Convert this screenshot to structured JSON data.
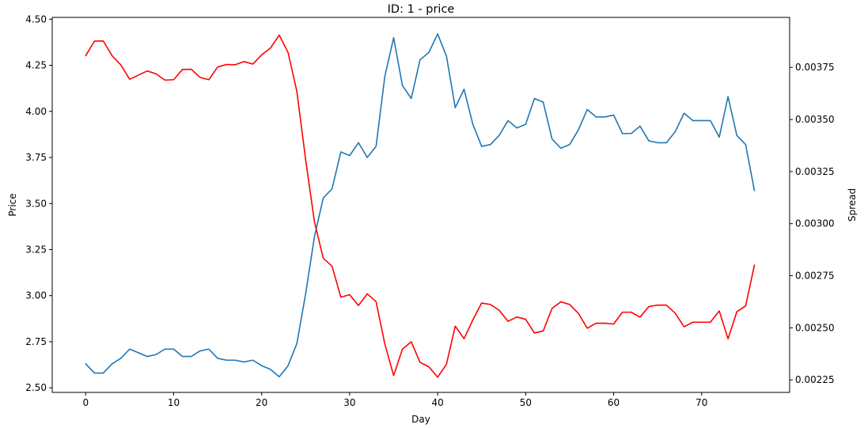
{
  "chart_data": {
    "type": "line",
    "title": "ID: 1 - price",
    "xlabel": "Day",
    "ylabel_left": "Price",
    "ylabel_right": "Spread",
    "xlim": [
      -3.8,
      80
    ],
    "ylim_left": [
      2.475,
      4.51
    ],
    "ylim_right": [
      0.00219,
      0.00399
    ],
    "x_ticks": [
      0,
      10,
      20,
      30,
      40,
      50,
      60,
      70
    ],
    "x_tick_labels": [
      "0",
      "10",
      "20",
      "30",
      "40",
      "50",
      "60",
      "70"
    ],
    "y_left_ticks": [
      2.5,
      2.75,
      3.0,
      3.25,
      3.5,
      3.75,
      4.0,
      4.25,
      4.5
    ],
    "y_left_tick_labels": [
      "2.50",
      "2.75",
      "3.00",
      "3.25",
      "3.50",
      "3.75",
      "4.00",
      "4.25",
      "4.50"
    ],
    "y_right_ticks": [
      0.00225,
      0.0025,
      0.00275,
      0.003,
      0.00325,
      0.0035,
      0.00375
    ],
    "y_right_tick_labels": [
      "0.00225",
      "0.00250",
      "0.00275",
      "0.00300",
      "0.00325",
      "0.00350",
      "0.00375"
    ],
    "grid": false,
    "series": [
      {
        "axis": "left",
        "color": "#1f77b4",
        "x": [
          0,
          1,
          2,
          3,
          4,
          5,
          6,
          7,
          8,
          9,
          10,
          11,
          12,
          13,
          14,
          15,
          16,
          17,
          18,
          19,
          20,
          21,
          22,
          23,
          24,
          25,
          26,
          27,
          28,
          29,
          30,
          31,
          32,
          33,
          34,
          35,
          36,
          37,
          38,
          39,
          40,
          41,
          42,
          43,
          44,
          45,
          46,
          47,
          48,
          49,
          50,
          51,
          52,
          53,
          54,
          55,
          56,
          57,
          58,
          59,
          60,
          61,
          62,
          63,
          64,
          65,
          66,
          67,
          68,
          69,
          70,
          71,
          72,
          73,
          74,
          75,
          76
        ],
        "values": [
          2.63,
          2.58,
          2.58,
          2.63,
          2.66,
          2.71,
          2.69,
          2.67,
          2.68,
          2.71,
          2.71,
          2.67,
          2.67,
          2.7,
          2.71,
          2.66,
          2.65,
          2.65,
          2.64,
          2.65,
          2.62,
          2.6,
          2.56,
          2.62,
          2.74,
          3.01,
          3.32,
          3.53,
          3.58,
          3.78,
          3.76,
          3.83,
          3.75,
          3.81,
          4.19,
          4.4,
          4.14,
          4.07,
          4.28,
          4.32,
          4.42,
          4.3,
          4.02,
          4.12,
          3.93,
          3.81,
          3.82,
          3.87,
          3.95,
          3.91,
          3.93,
          4.07,
          4.05,
          3.85,
          3.8,
          3.82,
          3.9,
          4.01,
          3.97,
          3.97,
          3.98,
          3.88,
          3.88,
          3.92,
          3.84,
          3.83,
          3.83,
          3.89,
          3.99,
          3.95,
          3.95,
          3.95,
          3.86,
          4.08,
          3.87,
          3.82,
          3.57
        ]
      },
      {
        "axis": "right",
        "color": "#ff0000",
        "x": [
          0,
          1,
          2,
          3,
          4,
          5,
          6,
          7,
          8,
          9,
          10,
          11,
          12,
          13,
          14,
          15,
          16,
          17,
          18,
          19,
          20,
          21,
          22,
          23,
          24,
          25,
          26,
          27,
          28,
          29,
          30,
          31,
          32,
          33,
          34,
          35,
          36,
          37,
          38,
          39,
          40,
          41,
          42,
          43,
          44,
          45,
          46,
          47,
          48,
          49,
          50,
          51,
          52,
          53,
          54,
          55,
          56,
          57,
          58,
          59,
          60,
          61,
          62,
          63,
          64,
          65,
          66,
          67,
          68,
          69,
          70,
          71,
          72,
          73,
          74,
          75,
          76
        ],
        "values": [
          0.003806,
          0.003876,
          0.003877,
          0.003806,
          0.003762,
          0.003693,
          0.003713,
          0.003733,
          0.003719,
          0.003689,
          0.003691,
          0.00374,
          0.003741,
          0.003702,
          0.003691,
          0.003752,
          0.003764,
          0.003763,
          0.003778,
          0.003766,
          0.00381,
          0.003843,
          0.003905,
          0.003822,
          0.003635,
          0.003307,
          0.003009,
          0.002834,
          0.002796,
          0.002647,
          0.002659,
          0.002607,
          0.002663,
          0.002626,
          0.002422,
          0.002271,
          0.002398,
          0.002433,
          0.002334,
          0.002313,
          0.002263,
          0.002325,
          0.002508,
          0.002448,
          0.002538,
          0.002619,
          0.002612,
          0.002584,
          0.002531,
          0.002552,
          0.002541,
          0.002475,
          0.002485,
          0.002593,
          0.002625,
          0.002612,
          0.002569,
          0.002498,
          0.002522,
          0.002522,
          0.002518,
          0.002575,
          0.002575,
          0.002551,
          0.002602,
          0.002609,
          0.002609,
          0.00257,
          0.002505,
          0.002527,
          0.002527,
          0.002527,
          0.002581,
          0.002447,
          0.002577,
          0.002605,
          0.002801
        ]
      }
    ]
  }
}
